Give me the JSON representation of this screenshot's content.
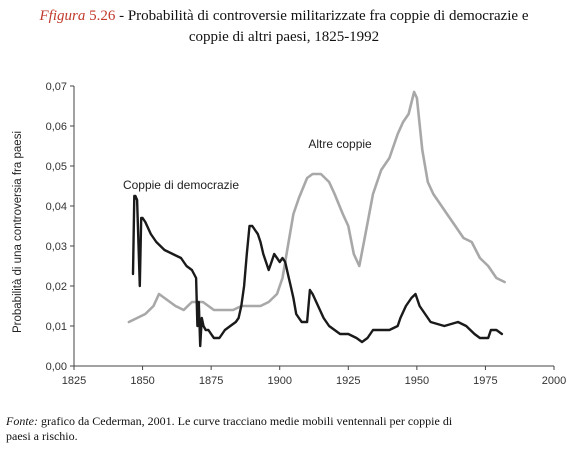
{
  "caption": {
    "label": "Ffigura",
    "number": "5.26",
    "title_line1": "- Probabilità di controversie militarizzate fra coppie di democrazie e",
    "title_line2": "coppie di altri paesi, 1825-1992"
  },
  "source": {
    "label": "Fonte:",
    "text_line1": "grafico da Cederman, 2001. Le curve tracciano medie mobili ventennali per coppie di",
    "text_line2": "paesi a rischio."
  },
  "chart_data": {
    "type": "line",
    "ylabel": "Probabilità di una controversia fra paesi",
    "xlabel": "",
    "xlim": [
      1825,
      2000
    ],
    "ylim": [
      0,
      0.07
    ],
    "x_ticks": [
      1825,
      1850,
      1875,
      1900,
      1925,
      1950,
      1975,
      2000
    ],
    "x_tick_labels": [
      "1825",
      "1850",
      "1875",
      "1900",
      "1925",
      "1950",
      "1975",
      "2000"
    ],
    "y_ticks": [
      0,
      0.01,
      0.02,
      0.03,
      0.04,
      0.05,
      0.06,
      0.07
    ],
    "y_tick_labels": [
      "0,00",
      "0,01",
      "0,02",
      "0,03",
      "0,04",
      "0,05",
      "0,06",
      "0,07"
    ],
    "grid": false,
    "series": [
      {
        "name": "Coppie di democrazie",
        "color": "#1a1a1a",
        "x": [
          1846.5,
          1847,
          1847.4,
          1848,
          1849,
          1849.5,
          1850,
          1851,
          1853,
          1855,
          1858,
          1861,
          1864,
          1866,
          1868,
          1869.5,
          1870,
          1870.5,
          1871,
          1871.6,
          1872.2,
          1873,
          1874,
          1875,
          1876,
          1878,
          1880,
          1882,
          1884,
          1885,
          1886,
          1887,
          1888,
          1889,
          1890,
          1891,
          1892,
          1893,
          1894,
          1895,
          1896,
          1897,
          1898,
          1899,
          1900,
          1901,
          1902,
          1903,
          1904,
          1905,
          1906,
          1907,
          1908,
          1910,
          1911,
          1912,
          1914,
          1916,
          1918,
          1920,
          1922,
          1925,
          1928,
          1930,
          1932,
          1934,
          1936,
          1940,
          1943,
          1944,
          1946,
          1948,
          1949.5,
          1951,
          1953,
          1955,
          1960,
          1965,
          1968,
          1971,
          1973,
          1976,
          1977,
          1979,
          1981
        ],
        "y": [
          0.023,
          0.0425,
          0.0425,
          0.0415,
          0.02,
          0.037,
          0.037,
          0.036,
          0.033,
          0.031,
          0.029,
          0.028,
          0.027,
          0.025,
          0.024,
          0.022,
          0.01,
          0.016,
          0.005,
          0.012,
          0.01,
          0.009,
          0.009,
          0.008,
          0.007,
          0.007,
          0.009,
          0.01,
          0.011,
          0.012,
          0.015,
          0.02,
          0.028,
          0.035,
          0.035,
          0.034,
          0.033,
          0.031,
          0.028,
          0.026,
          0.024,
          0.026,
          0.028,
          0.027,
          0.026,
          0.027,
          0.026,
          0.023,
          0.02,
          0.017,
          0.013,
          0.012,
          0.011,
          0.011,
          0.019,
          0.018,
          0.015,
          0.012,
          0.01,
          0.009,
          0.008,
          0.008,
          0.007,
          0.006,
          0.007,
          0.009,
          0.009,
          0.009,
          0.01,
          0.012,
          0.015,
          0.017,
          0.018,
          0.015,
          0.013,
          0.011,
          0.01,
          0.011,
          0.01,
          0.008,
          0.007,
          0.007,
          0.009,
          0.009,
          0.008
        ]
      },
      {
        "name": "Altre coppie",
        "color": "#a8a8a8",
        "x": [
          1845,
          1848,
          1851,
          1854,
          1856,
          1858,
          1860,
          1862,
          1865,
          1868,
          1872,
          1876,
          1880,
          1883,
          1886,
          1890,
          1893,
          1896,
          1899,
          1901,
          1903,
          1905,
          1907,
          1910,
          1912,
          1915,
          1918,
          1920,
          1923,
          1925,
          1927,
          1929,
          1931,
          1934,
          1937,
          1940,
          1943,
          1945,
          1947,
          1949,
          1950,
          1952,
          1954,
          1956,
          1958,
          1961,
          1964,
          1967,
          1970,
          1973,
          1976,
          1979,
          1982
        ],
        "y": [
          0.011,
          0.012,
          0.013,
          0.015,
          0.018,
          0.017,
          0.016,
          0.015,
          0.014,
          0.016,
          0.016,
          0.014,
          0.014,
          0.014,
          0.015,
          0.015,
          0.015,
          0.016,
          0.018,
          0.022,
          0.03,
          0.038,
          0.042,
          0.047,
          0.048,
          0.048,
          0.046,
          0.043,
          0.038,
          0.035,
          0.028,
          0.025,
          0.032,
          0.043,
          0.049,
          0.052,
          0.058,
          0.061,
          0.063,
          0.0685,
          0.067,
          0.054,
          0.046,
          0.043,
          0.041,
          0.038,
          0.035,
          0.032,
          0.031,
          0.027,
          0.025,
          0.022,
          0.021
        ]
      }
    ],
    "annotations": [
      {
        "text": "Coppie di democrazie",
        "x": 1864,
        "y": 0.0442
      },
      {
        "text": "Altre coppie",
        "x": 1922,
        "y": 0.0545
      }
    ]
  }
}
